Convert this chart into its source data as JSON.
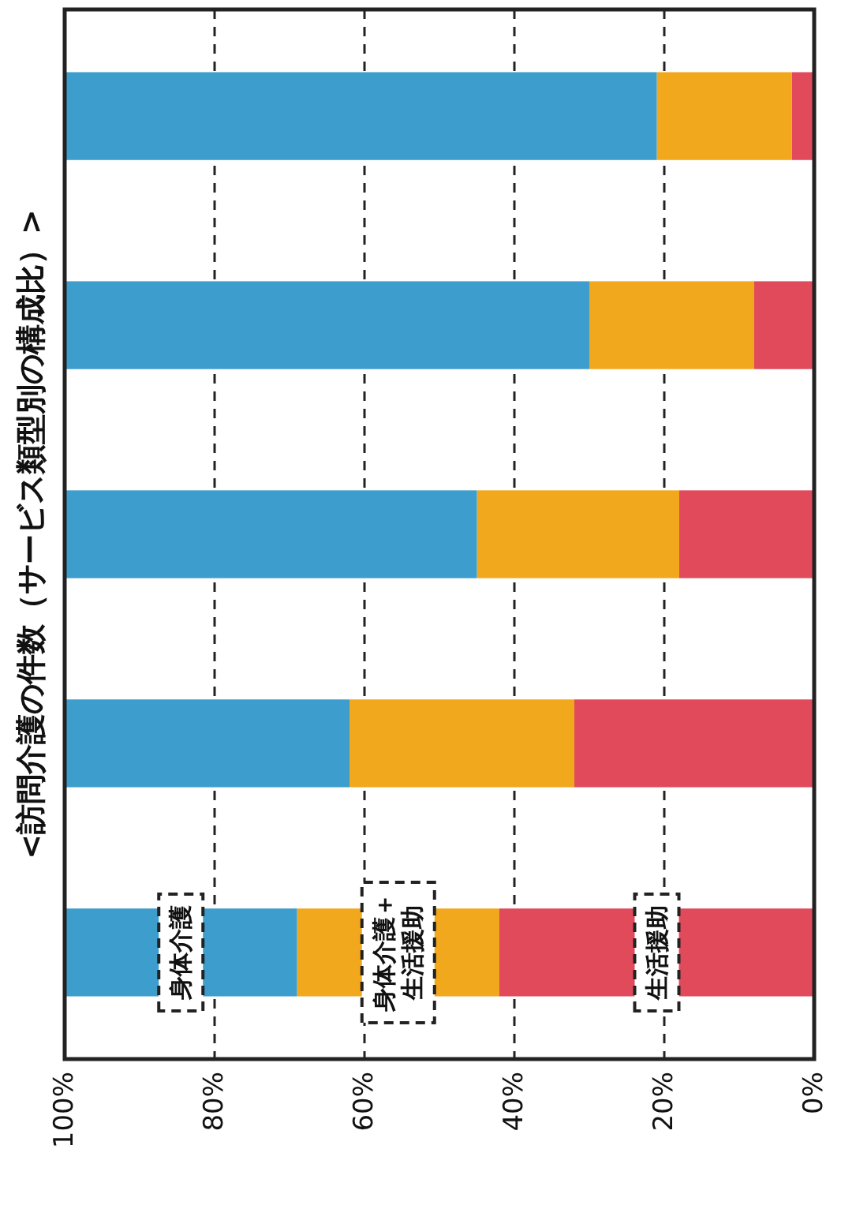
{
  "chart_data": {
    "type": "bar",
    "orientation": "horizontal",
    "title": "<訪問介護の件数（サービス類型別の構成比）>",
    "stacked": true,
    "categories": [
      null,
      null,
      null,
      null,
      null
    ],
    "series": [
      {
        "name": "生活援助",
        "color": "#e04a5a",
        "values": [
          3,
          8,
          18,
          32,
          42
        ]
      },
      {
        "name": "身体介護＋生活援助",
        "color": "#f2a81d",
        "values": [
          18,
          22,
          27,
          30,
          27
        ]
      },
      {
        "name": "身体介護",
        "color": "#3d9dcc",
        "values": [
          79,
          70,
          55,
          38,
          31
        ]
      }
    ],
    "xlim": [
      100,
      0
    ],
    "xticks": [
      {
        "value": 100,
        "label": "100%"
      },
      {
        "value": 80,
        "label": "80%"
      },
      {
        "value": 60,
        "label": "60%"
      },
      {
        "value": 40,
        "label": "40%"
      },
      {
        "value": 20,
        "label": "20%"
      },
      {
        "value": 0,
        "label": "0%"
      }
    ],
    "grid": "x"
  }
}
